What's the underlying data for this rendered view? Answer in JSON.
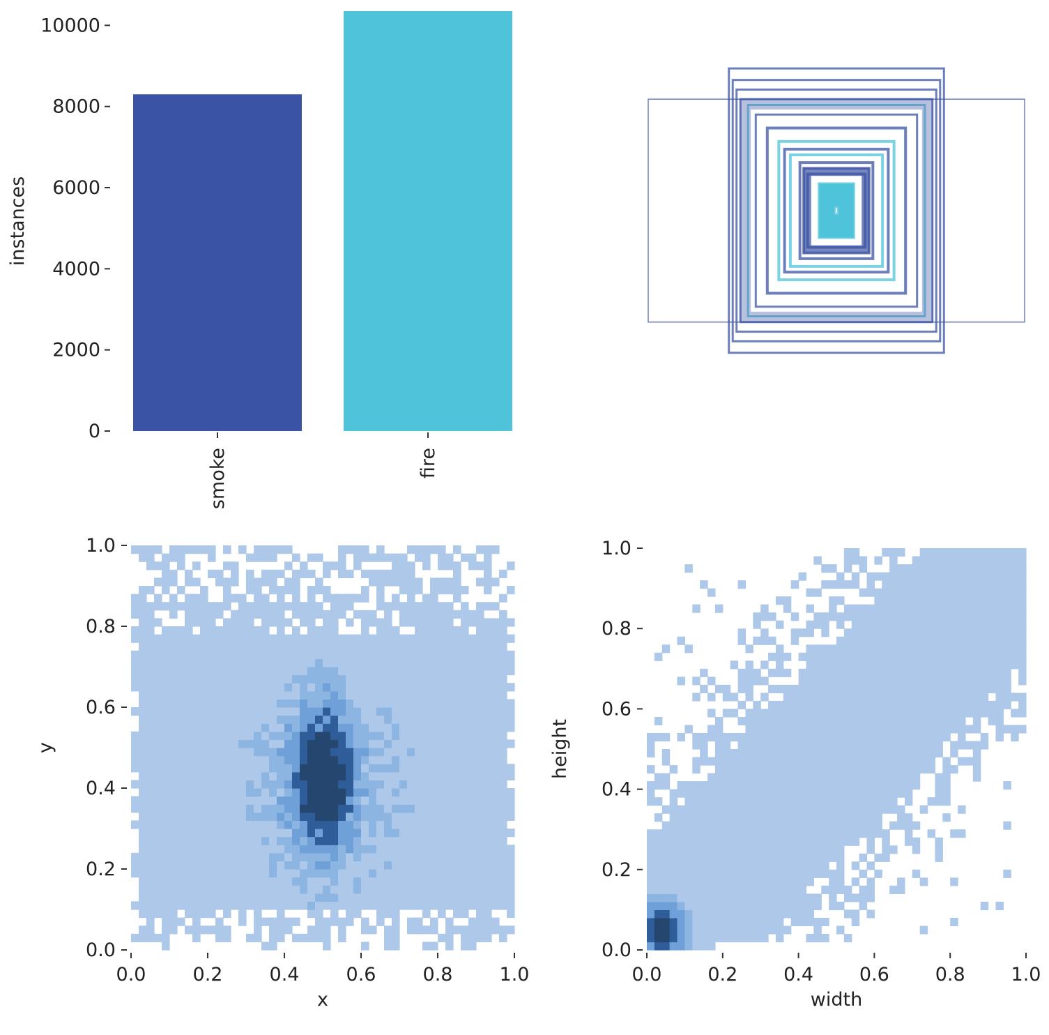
{
  "colors": {
    "smoke": "#3b53a4",
    "fire": "#4fc3d9",
    "hist_light": "#aec8ea",
    "hist_mid": "#6fa1d8",
    "hist_dark": "#2f5d9a",
    "hist_darkest": "#25466f"
  },
  "chart_data": [
    {
      "id": "instances-bar",
      "type": "bar",
      "categories": [
        "smoke",
        "fire"
      ],
      "values": [
        8300,
        10350
      ],
      "xlabel": "",
      "ylabel": "instances",
      "ylim": [
        0,
        10350
      ],
      "yticks": [
        0,
        2000,
        4000,
        6000,
        8000,
        10000
      ],
      "ytick_labels": [
        "0",
        "2000",
        "4000",
        "6000",
        "8000",
        "10000"
      ],
      "grid": false
    },
    {
      "id": "bbox-overlay",
      "type": "other",
      "description_of_marks": "overlaid bounding box outlines centred on the image",
      "boxes": [
        {
          "w": 0.98,
          "h": 0.58,
          "class": "smoke"
        },
        {
          "w": 0.56,
          "h": 0.74,
          "class": "smoke"
        },
        {
          "w": 0.54,
          "h": 0.68,
          "class": "smoke"
        },
        {
          "w": 0.52,
          "h": 0.63,
          "class": "smoke"
        },
        {
          "w": 0.5,
          "h": 0.58,
          "class": "smoke"
        },
        {
          "w": 0.46,
          "h": 0.55,
          "class": "fire"
        },
        {
          "w": 0.42,
          "h": 0.5,
          "class": "smoke"
        },
        {
          "w": 0.36,
          "h": 0.43,
          "class": "smoke"
        },
        {
          "w": 0.3,
          "h": 0.36,
          "class": "fire"
        },
        {
          "w": 0.27,
          "h": 0.32,
          "class": "smoke"
        },
        {
          "w": 0.24,
          "h": 0.29,
          "class": "fire"
        },
        {
          "w": 0.19,
          "h": 0.25,
          "class": "smoke"
        },
        {
          "w": 0.17,
          "h": 0.22,
          "class": "smoke"
        },
        {
          "w": 0.15,
          "h": 0.19,
          "class": "smoke"
        },
        {
          "w": 0.09,
          "h": 0.14,
          "class": "fire"
        },
        {
          "w": 0.01,
          "h": 0.02,
          "class": "fire"
        }
      ]
    },
    {
      "id": "xy-hist",
      "type": "heatmap",
      "xlabel": "x",
      "ylabel": "y",
      "xlim": [
        0,
        1
      ],
      "ylim": [
        0,
        1
      ],
      "xticks": [
        "0.0",
        "0.2",
        "0.4",
        "0.6",
        "0.8",
        "1.0"
      ],
      "yticks": [
        "0.0",
        "0.2",
        "0.4",
        "0.6",
        "0.8",
        "1.0"
      ],
      "bins": 50,
      "density_centre": [
        0.5,
        0.42
      ],
      "grid": false
    },
    {
      "id": "wh-hist",
      "type": "heatmap",
      "xlabel": "width",
      "ylabel": "height",
      "xlim": [
        0,
        1
      ],
      "ylim": [
        0,
        1
      ],
      "xticks": [
        "0.0",
        "0.2",
        "0.4",
        "0.6",
        "0.8",
        "1.0"
      ],
      "yticks": [
        "0.0",
        "0.2",
        "0.4",
        "0.6",
        "0.8",
        "1.0"
      ],
      "bins": 50,
      "density_centre": [
        0.04,
        0.05
      ],
      "grid": false
    }
  ]
}
